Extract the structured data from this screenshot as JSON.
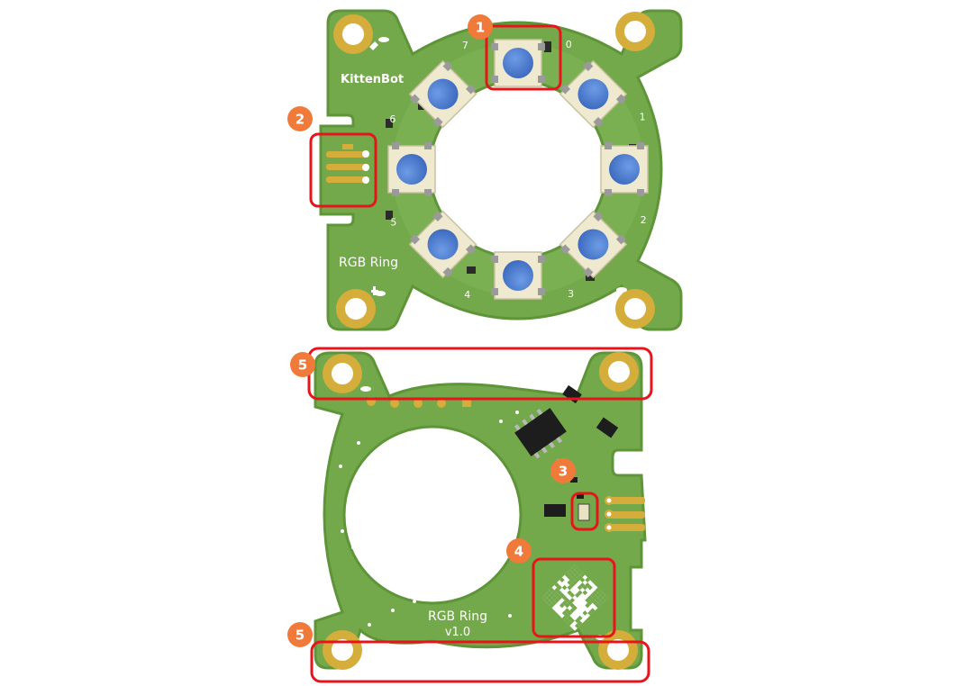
{
  "front_board": {
    "brand": "KittenBot",
    "name": "RGB Ring",
    "led_indices": [
      "0",
      "1",
      "2",
      "3",
      "4",
      "5",
      "6",
      "7"
    ]
  },
  "back_board": {
    "name": "RGB Ring",
    "version": "v1.0"
  },
  "callouts": [
    {
      "number": "1"
    },
    {
      "number": "2"
    },
    {
      "number": "3"
    },
    {
      "number": "4"
    },
    {
      "number": "5"
    },
    {
      "number": "5"
    }
  ],
  "colors": {
    "pcb_green": "#73a84b",
    "pcb_edge": "#5f9539",
    "gold_pad": "#d4ad3b",
    "led_blue": "#4f7ed0",
    "callout_orange": "#f07a3a",
    "highlight_red": "#e8141b"
  }
}
